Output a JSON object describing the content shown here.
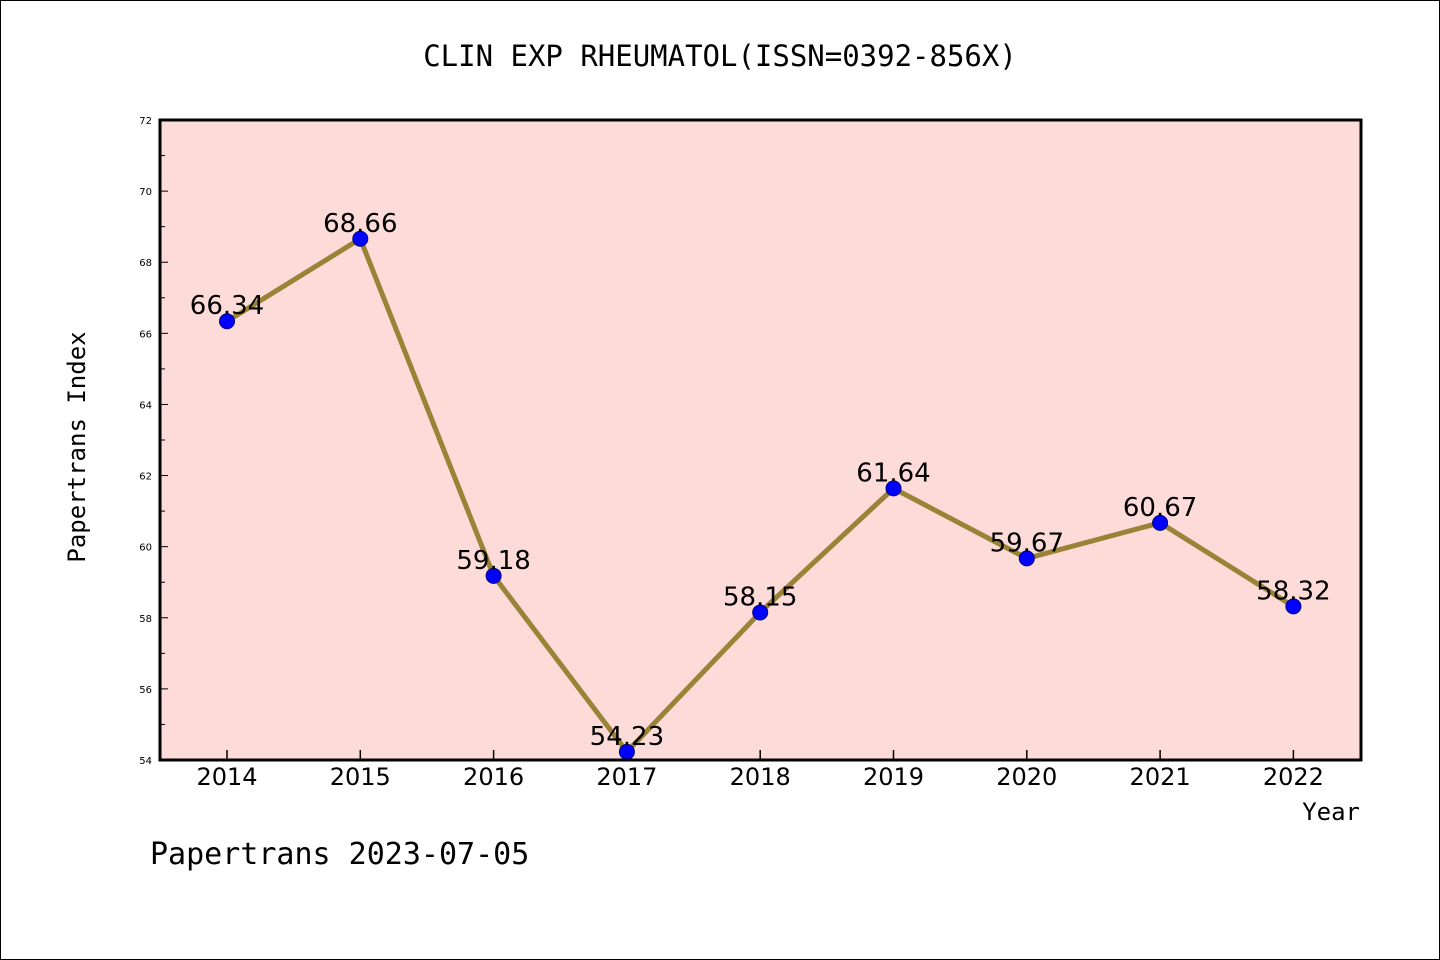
{
  "chart_data": {
    "type": "line",
    "title": "CLIN EXP RHEUMATOL(ISSN=0392-856X)",
    "xlabel": "Year",
    "ylabel": "Papertrans Index",
    "categories": [
      "2014",
      "2015",
      "2016",
      "2017",
      "2018",
      "2019",
      "2020",
      "2021",
      "2022"
    ],
    "values": [
      66.34,
      68.66,
      59.18,
      54.23,
      58.15,
      61.64,
      59.67,
      60.67,
      58.32
    ],
    "data_labels": [
      "66.34",
      "68.66",
      "59.18",
      "54.23",
      "58.15",
      "61.64",
      "59.67",
      "60.67",
      "58.32"
    ],
    "ylim": [
      54,
      72
    ],
    "y_ticks": [
      "54",
      "56",
      "58",
      "60",
      "62",
      "64",
      "66",
      "68",
      "70",
      "72"
    ],
    "grid": false,
    "legend": "none",
    "colors": {
      "plot_background": "#fddbd8",
      "line": "#9a8236",
      "marker": "#0000ff",
      "marker_edge": "#000080"
    }
  },
  "footer": {
    "text": "Papertrans 2023-07-05"
  }
}
